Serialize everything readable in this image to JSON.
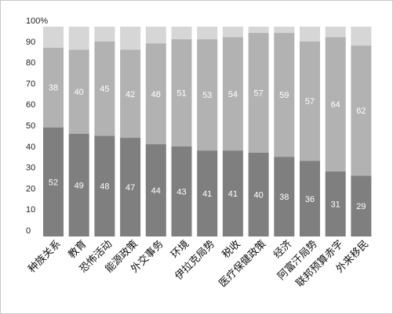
{
  "chart_data": {
    "type": "bar",
    "stacked": true,
    "percent_stacked": true,
    "title": "",
    "xlabel": "",
    "ylabel": "",
    "ylim": [
      0,
      100
    ],
    "y_ticks": [
      "0",
      "10",
      "20",
      "30",
      "40",
      "50",
      "60",
      "70",
      "80",
      "90",
      "100%"
    ],
    "categories": [
      "种族关系",
      "教育",
      "恐怖活动",
      "能源政策",
      "外交事务",
      "环境",
      "伊拉克局势",
      "税收",
      "医疗保健政策",
      "经济",
      "阿富汗局势",
      "联邦预算赤字",
      "外来移民"
    ],
    "series": [
      {
        "values": [
          52,
          49,
          48,
          47,
          44,
          43,
          41,
          41,
          40,
          38,
          36,
          31,
          29
        ],
        "color": "#7f7f7f"
      },
      {
        "values": [
          38,
          40,
          45,
          42,
          48,
          51,
          53,
          54,
          57,
          59,
          57,
          64,
          62
        ],
        "color": "#b2b2b2"
      },
      {
        "values": [
          10,
          11,
          7,
          11,
          8,
          6,
          6,
          5,
          3,
          3,
          7,
          5,
          9
        ],
        "color": "#d6d6d6"
      }
    ],
    "grid": false,
    "legend": "none"
  }
}
